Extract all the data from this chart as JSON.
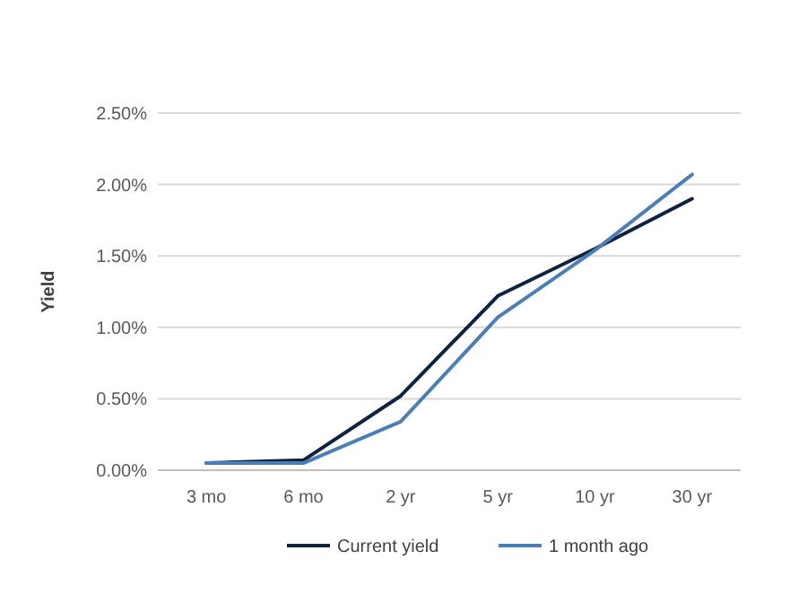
{
  "chart_data": {
    "type": "line",
    "ylabel": "Yield",
    "categories": [
      "3 mo",
      "6 mo",
      "2 yr",
      "5 yr",
      "10 yr",
      "30 yr"
    ],
    "series": [
      {
        "name": "Current yield",
        "color": "#0e2341",
        "values": [
          0.05,
          0.07,
          0.52,
          1.22,
          1.55,
          1.9
        ]
      },
      {
        "name": "1 month ago",
        "color": "#4a7eb5",
        "values": [
          0.05,
          0.05,
          0.34,
          1.07,
          1.54,
          2.07
        ]
      }
    ],
    "ylim": [
      0,
      2.5
    ],
    "yticks": [
      {
        "value": 0,
        "label": "0.00%"
      },
      {
        "value": 0.5,
        "label": "0.50%"
      },
      {
        "value": 1,
        "label": "1.00%"
      },
      {
        "value": 1.5,
        "label": "1.50%"
      },
      {
        "value": 2,
        "label": "2.00%"
      },
      {
        "value": 2.5,
        "label": "2.50%"
      }
    ],
    "grid": "y",
    "legend": "bottom",
    "marker": "none",
    "line_style": "solid"
  }
}
